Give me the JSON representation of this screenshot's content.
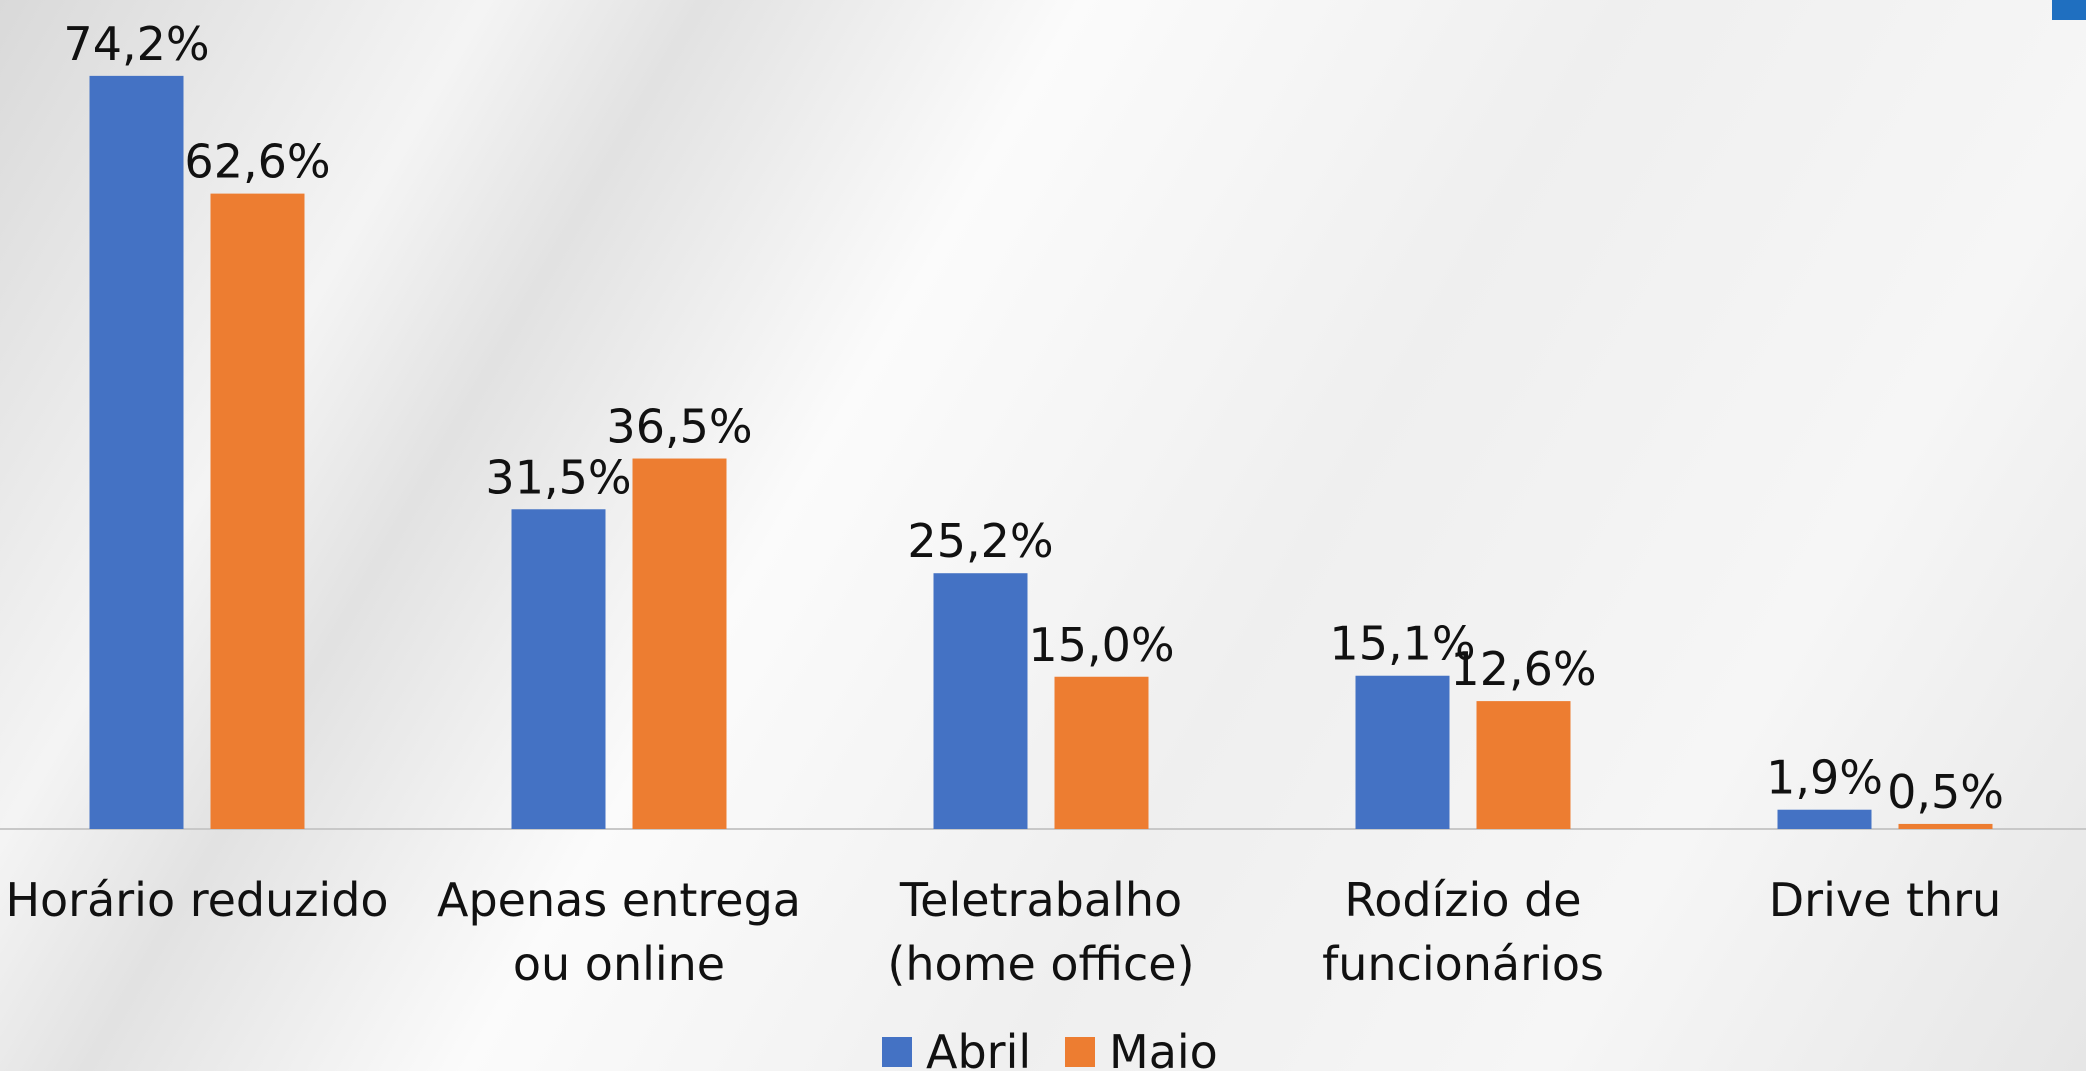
{
  "chart_data": {
    "type": "bar",
    "categories": [
      "Horário reduzido",
      "Apenas entrega ou online",
      "Teletrabalho (home office)",
      "Rodízio de funcionários",
      "Drive thru"
    ],
    "series": [
      {
        "name": "Abril",
        "color": "#4472c4",
        "values": [
          74.2,
          31.5,
          25.2,
          15.1,
          1.9
        ],
        "value_labels": [
          "74,2%",
          "31,5%",
          "25,2%",
          "15,1%",
          "1,9%"
        ]
      },
      {
        "name": "Maio",
        "color": "#ed7d31",
        "values": [
          62.6,
          36.5,
          15.0,
          12.6,
          0.5
        ],
        "value_labels": [
          "62,6%",
          "36,5%",
          "15,0%",
          "12,6%",
          "0,5%"
        ]
      }
    ],
    "ylim": [
      0,
      80
    ],
    "legend": "bottom"
  }
}
